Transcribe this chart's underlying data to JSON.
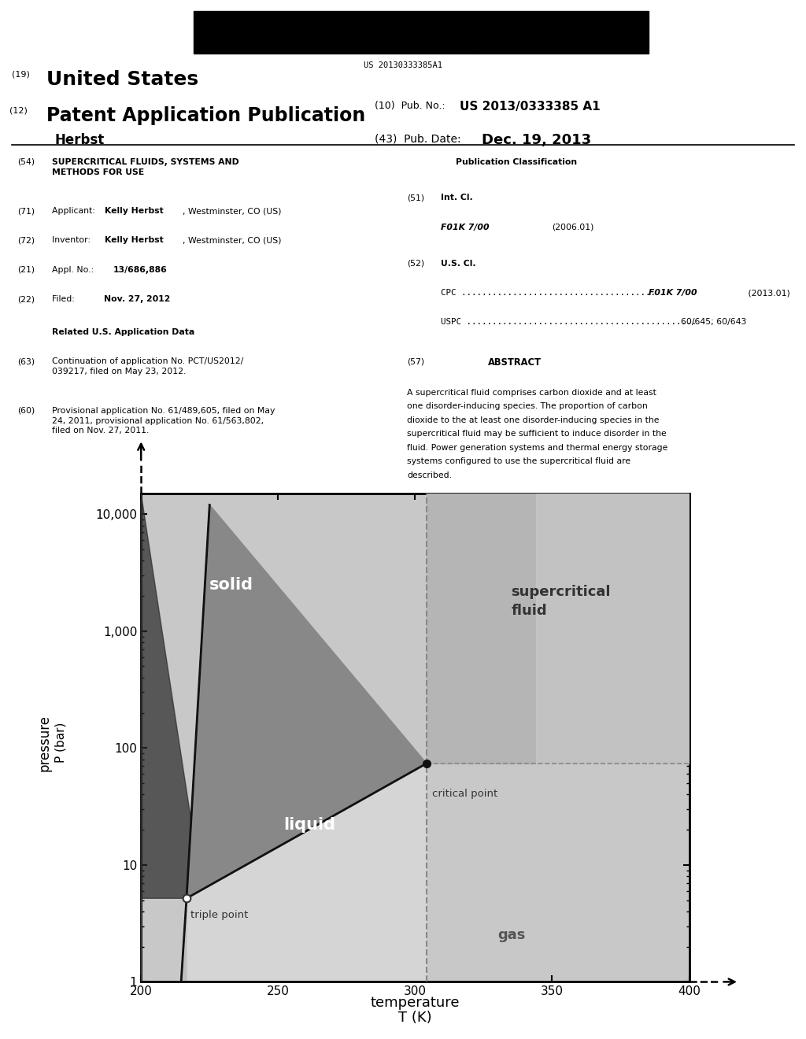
{
  "header_barcode_text": "US 20130333385A1",
  "pub_no": "US 2013/0333385 A1",
  "pub_date": "Dec. 19, 2013",
  "author": "Herbst",
  "triple_point_T": 216.6,
  "triple_point_P": 5.18,
  "critical_point_T": 304.2,
  "critical_point_P": 73.8,
  "diagram_ytick_labels": [
    "1",
    "10",
    "100",
    "1,000",
    "10,000"
  ],
  "diagram_xticks": [
    200,
    250,
    300,
    350,
    400
  ],
  "label_solid": "solid",
  "label_liquid": "liquid",
  "label_gas": "gas",
  "label_supercritical": "supercritical\nfluid",
  "label_triple_point": "triple point",
  "label_critical_point": "critical point",
  "color_solid": "#3a3a3a",
  "color_solid_dark": "#252525",
  "color_liquid": "#707070",
  "color_gas": "#b0b0b0",
  "color_supercritical": "#c0c0c0",
  "color_supercritical_light": "#d8d8d8",
  "color_gas_light": "#e0e0e0",
  "color_curve": "#111111"
}
